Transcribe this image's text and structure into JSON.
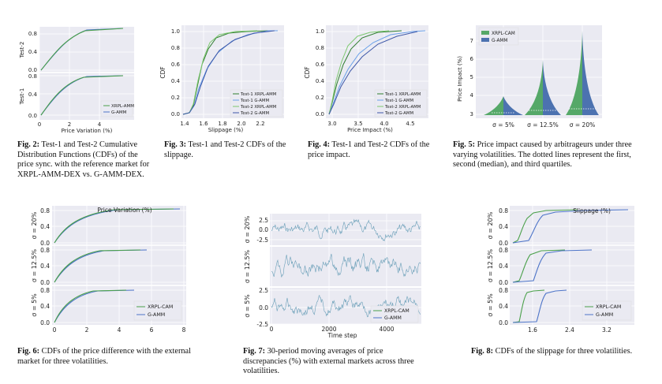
{
  "colors": {
    "green": "#4aa04a",
    "blue": "#4d74c8",
    "panel": "#eaeaf2",
    "grid": "#ffffff",
    "violinGreen": "#55a868",
    "violinBlue": "#4c72b0"
  },
  "captions": {
    "fig2": {
      "label": "Fig. 2:",
      "text": "Test-1 and Test-2 Cumulative Distribution Functions (CDFs) of the price sync. with the reference market for XRPL-AMM-DEX vs. G-AMM-DEX."
    },
    "fig3": {
      "label": "Fig. 3:",
      "text": "Test-1 and Test-2 CDFs of the slippage."
    },
    "fig4": {
      "label": "Fig. 4:",
      "text": "Test-1 and Test-2 CDFs of the price impact."
    },
    "fig5": {
      "label": "Fig. 5:",
      "text": "Price impact caused by arbitrageurs under three varying volatilities. The dotted lines represent the first, second (median), and third quartiles."
    },
    "fig6": {
      "label": "Fig. 6:",
      "text": "CDFs of the price difference with the external market for three volatilities."
    },
    "fig7": {
      "label": "Fig. 7:",
      "text": "30-period moving averages of price discrepancies (%) with external markets across three volatilities."
    },
    "fig8": {
      "label": "Fig. 8:",
      "text": "CDFs of the slippage for three volatilities."
    }
  },
  "chart_data": [
    {
      "id": "fig2",
      "type": "line",
      "xlabel": "Price Variation (%)",
      "xticks": [
        "0",
        "2",
        "4"
      ],
      "panels": [
        {
          "ylabel": "Test-2",
          "yticks": [
            "0.0",
            "0.4",
            "0.8"
          ]
        },
        {
          "ylabel": "Test-1",
          "yticks": [
            "0.0",
            "0.4",
            "0.8"
          ]
        }
      ],
      "legend": [
        "XRPL-AMM",
        "G-AMM"
      ],
      "legend_position": "bottom-right"
    },
    {
      "id": "fig3",
      "type": "line",
      "xlabel": "Slippage (%)",
      "ylabel": "CDF",
      "xticks": [
        "1.4",
        "1.6",
        "1.8",
        "2.0",
        "2.2"
      ],
      "yticks": [
        "0.0",
        "0.2",
        "0.4",
        "0.6",
        "0.8",
        "1.0"
      ],
      "series": [
        {
          "name": "Test-1  XRPL-AMM"
        },
        {
          "name": "Test-1  G-AMM"
        },
        {
          "name": "Test-2  XRPL-AMM"
        },
        {
          "name": "Test-2  G-AMM"
        }
      ],
      "legend_position": "bottom-right"
    },
    {
      "id": "fig4",
      "type": "line",
      "xlabel": "Price Impact (%)",
      "ylabel": "CDF",
      "xticks": [
        "3.0",
        "3.5",
        "4.0",
        "4.5"
      ],
      "yticks": [
        "0.0",
        "0.2",
        "0.4",
        "0.6",
        "0.8",
        "1.0"
      ],
      "series": [
        {
          "name": "Test-1  XRPL-AMM"
        },
        {
          "name": "Test-1  G-AMM"
        },
        {
          "name": "Test-2  XRPL-AMM"
        },
        {
          "name": "Test-2  G-AMM"
        }
      ],
      "legend_position": "bottom-right"
    },
    {
      "id": "fig5",
      "type": "violin",
      "ylabel": "Price Impact (%)",
      "yticks": [
        "3",
        "4",
        "5",
        "6",
        "7"
      ],
      "categories": [
        "σ = 5%",
        "σ = 12.5%",
        "σ = 20%"
      ],
      "legend": [
        "XRPL-CAM",
        "G-AMM"
      ],
      "legend_position": "top-left",
      "peak": [
        4.1,
        6.0,
        7.6
      ]
    },
    {
      "id": "fig6",
      "type": "line",
      "xlabel": "Price Variation (%)",
      "xticks": [
        "0",
        "2",
        "4",
        "6",
        "8"
      ],
      "panels": [
        {
          "ylabel": "σ = 20%",
          "yticks": [
            "0.0",
            "0.4",
            "0.8"
          ]
        },
        {
          "ylabel": "σ = 12.5%",
          "yticks": [
            "0.0",
            "0.4",
            "0.8"
          ]
        },
        {
          "ylabel": "σ = 5%",
          "yticks": [
            "0.0",
            "0.4",
            "0.8"
          ]
        }
      ],
      "legend": [
        "XRPL-CAM",
        "G-AMM"
      ],
      "legend_position": "bottom-right"
    },
    {
      "id": "fig7",
      "type": "line",
      "xlabel": "Time step",
      "xticks": [
        "0",
        "2000",
        "4000"
      ],
      "panels": [
        {
          "ylabel": "σ = 20%",
          "yticks": [
            "-2.5",
            "0.0",
            "2.5"
          ]
        },
        {
          "ylabel": "σ = 12.5%",
          "yticks": []
        },
        {
          "ylabel": "σ = 5%",
          "yticks": [
            "-2.5",
            "0.0",
            "2.5"
          ]
        }
      ],
      "legend": [
        "XRPL-CAM",
        "G-AMM"
      ],
      "legend_position": "bottom-right"
    },
    {
      "id": "fig8",
      "type": "line",
      "xlabel": "Slippage (%)",
      "xticks": [
        "1.6",
        "2.4",
        "3.2"
      ],
      "panels": [
        {
          "ylabel": "σ = 20%",
          "yticks": [
            "0.0",
            "0.4",
            "0.8"
          ]
        },
        {
          "ylabel": "σ = 12.5%",
          "yticks": [
            "0.0",
            "0.4",
            "0.8"
          ]
        },
        {
          "ylabel": "σ = 5%",
          "yticks": [
            "0.0",
            "0.4",
            "0.8"
          ]
        }
      ],
      "legend": [
        "XRPL-CAM",
        "G-AMM"
      ],
      "legend_position": "bottom-right"
    }
  ]
}
